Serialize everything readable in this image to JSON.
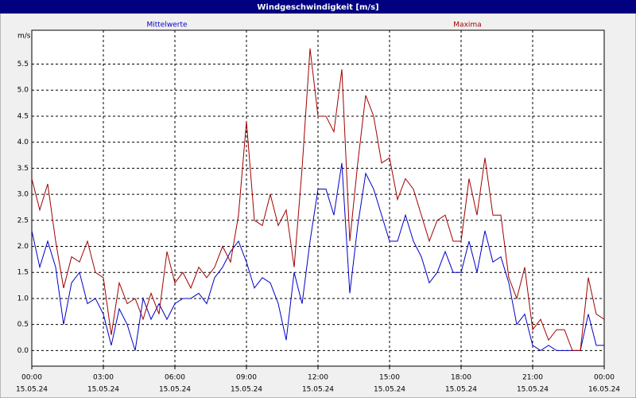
{
  "chart_data": {
    "type": "line",
    "title": "Windgeschwindigkeit [m/s]",
    "ylabel": "m/s",
    "x": [
      0,
      20,
      40,
      60,
      80,
      100,
      120,
      140,
      160,
      180,
      200,
      220,
      240,
      260,
      280,
      300,
      320,
      340,
      360,
      380,
      400,
      420,
      440,
      460,
      480,
      500,
      520,
      540,
      560,
      580,
      600,
      620,
      640,
      660,
      680,
      700,
      720,
      740,
      760,
      780,
      800,
      820,
      840,
      860,
      880,
      900,
      920,
      940,
      960,
      980,
      1000,
      1020,
      1040,
      1060,
      1080,
      1100,
      1120,
      1140,
      1160,
      1180,
      1200,
      1220,
      1240,
      1260,
      1280,
      1300,
      1320,
      1340,
      1360,
      1380,
      1400,
      1420,
      1440
    ],
    "series": [
      {
        "name": "Mittelwerte",
        "color": "#0000c8",
        "values": [
          2.3,
          1.6,
          2.1,
          1.6,
          0.5,
          1.3,
          1.5,
          0.9,
          1.0,
          0.7,
          0.1,
          0.8,
          0.5,
          0.0,
          1.0,
          0.6,
          0.9,
          0.6,
          0.9,
          1.0,
          1.0,
          1.1,
          0.9,
          1.4,
          1.6,
          1.9,
          2.1,
          1.7,
          1.2,
          1.4,
          1.3,
          0.9,
          0.2,
          1.5,
          0.9,
          2.1,
          3.1,
          3.1,
          2.6,
          3.6,
          1.1,
          2.4,
          3.4,
          3.1,
          2.6,
          2.1,
          2.1,
          2.6,
          2.1,
          1.8,
          1.3,
          1.5,
          1.9,
          1.5,
          1.5,
          2.1,
          1.5,
          2.3,
          1.7,
          1.8,
          1.3,
          0.5,
          0.7,
          0.1,
          0.0,
          0.1,
          0.0,
          0.0,
          0.0,
          0.0,
          0.7,
          0.1,
          0.1
        ]
      },
      {
        "name": "Maxima",
        "color": "#a00000",
        "values": [
          3.3,
          2.7,
          3.2,
          2.1,
          1.2,
          1.8,
          1.7,
          2.1,
          1.5,
          1.4,
          0.3,
          1.3,
          0.9,
          1.0,
          0.6,
          1.1,
          0.7,
          1.9,
          1.3,
          1.5,
          1.2,
          1.6,
          1.4,
          1.6,
          2.0,
          1.7,
          2.6,
          4.4,
          2.5,
          2.4,
          3.0,
          2.4,
          2.7,
          1.6,
          3.5,
          5.8,
          4.5,
          4.5,
          4.2,
          5.4,
          2.1,
          3.6,
          4.9,
          4.5,
          3.6,
          3.7,
          2.9,
          3.3,
          3.1,
          2.6,
          2.1,
          2.5,
          2.6,
          2.1,
          2.1,
          3.3,
          2.6,
          3.7,
          2.6,
          2.6,
          1.4,
          1.0,
          1.6,
          0.4,
          0.6,
          0.2,
          0.4,
          0.4,
          0.0,
          0.0,
          1.4,
          0.7,
          0.6
        ]
      }
    ],
    "xlim": [
      0,
      1440
    ],
    "xticks": [
      {
        "value": 0,
        "label": "00:00"
      },
      {
        "value": 180,
        "label": "03:00"
      },
      {
        "value": 360,
        "label": "06:00"
      },
      {
        "value": 540,
        "label": "09:00"
      },
      {
        "value": 720,
        "label": "12:00"
      },
      {
        "value": 900,
        "label": "15:00"
      },
      {
        "value": 1080,
        "label": "18:00"
      },
      {
        "value": 1260,
        "label": "21:00"
      },
      {
        "value": 1440,
        "label": "00:00"
      }
    ],
    "xtick_dates": [
      "15.05.24",
      "15.05.24",
      "15.05.24",
      "15.05.24",
      "15.05.24",
      "15.05.24",
      "15.05.24",
      "15.05.24",
      "16.05.24"
    ],
    "ylim": [
      -0.3,
      6.15
    ],
    "yticks": [
      {
        "value": 0,
        "label": "0.0"
      },
      0.5,
      {
        "value": 1,
        "label": "1.0"
      },
      1.5,
      {
        "value": 2,
        "label": "2.0"
      },
      2.5,
      {
        "value": 3,
        "label": "3.0"
      },
      3.5,
      {
        "value": 4,
        "label": "4.0"
      },
      4.5,
      {
        "value": 5,
        "label": "5.0"
      },
      5.5
    ],
    "grid": true
  }
}
